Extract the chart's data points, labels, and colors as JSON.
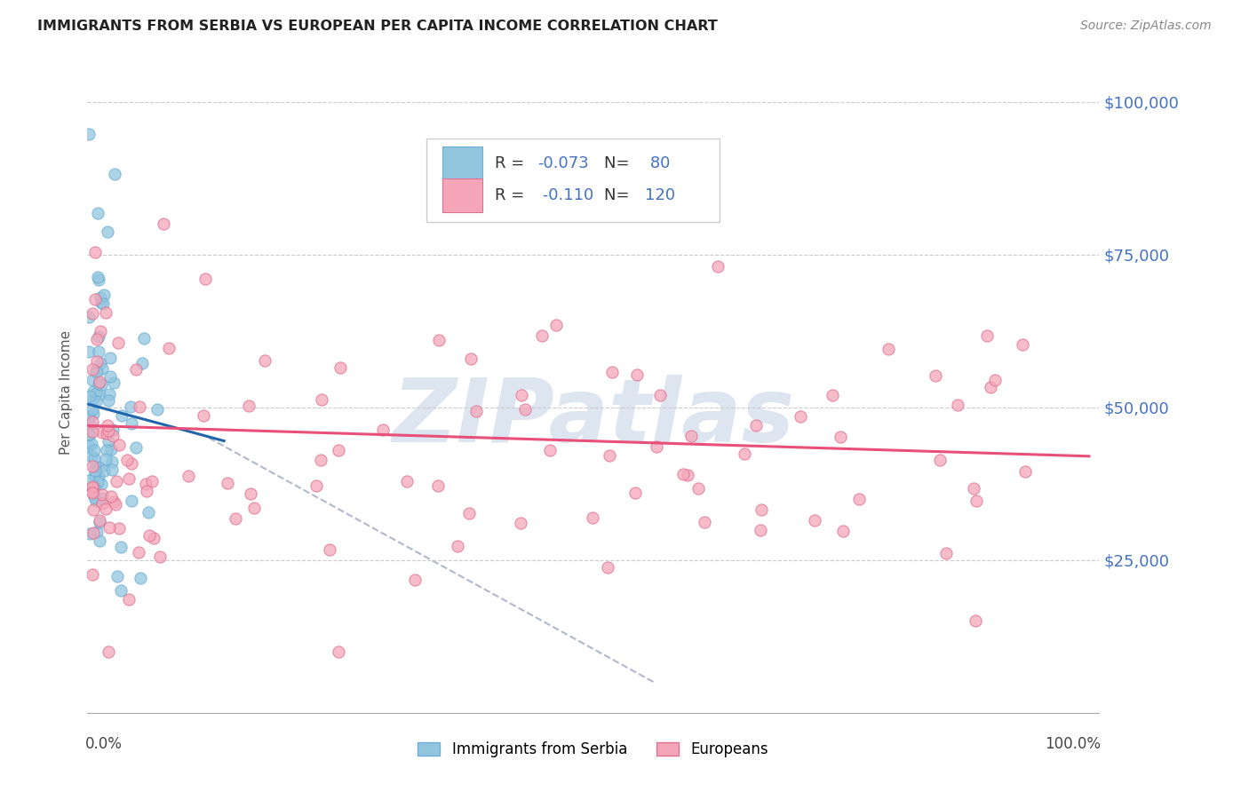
{
  "title": "IMMIGRANTS FROM SERBIA VS EUROPEAN PER CAPITA INCOME CORRELATION CHART",
  "source": "Source: ZipAtlas.com",
  "ylabel": "Per Capita Income",
  "xmin": 0.0,
  "xmax": 1.0,
  "ymin": 0,
  "ymax": 105000,
  "serbia_R": -0.073,
  "serbia_N": 80,
  "european_R": -0.11,
  "european_N": 120,
  "serbia_color": "#92c5de",
  "european_color": "#f4a6b8",
  "serbia_edge_color": "#6baed6",
  "european_edge_color": "#e07090",
  "serbia_trend_color": "#2166ac",
  "european_trend_color": "#e8507a",
  "dashed_line_color": "#b0b8cc",
  "watermark": "ZIPatlas",
  "watermark_color": "#dde5f0",
  "background_color": "#ffffff",
  "right_tick_color": "#4472c4",
  "legend_text_color": "#333333",
  "legend_rn_color": "#4472c4",
  "title_color": "#222222",
  "source_color": "#888888"
}
